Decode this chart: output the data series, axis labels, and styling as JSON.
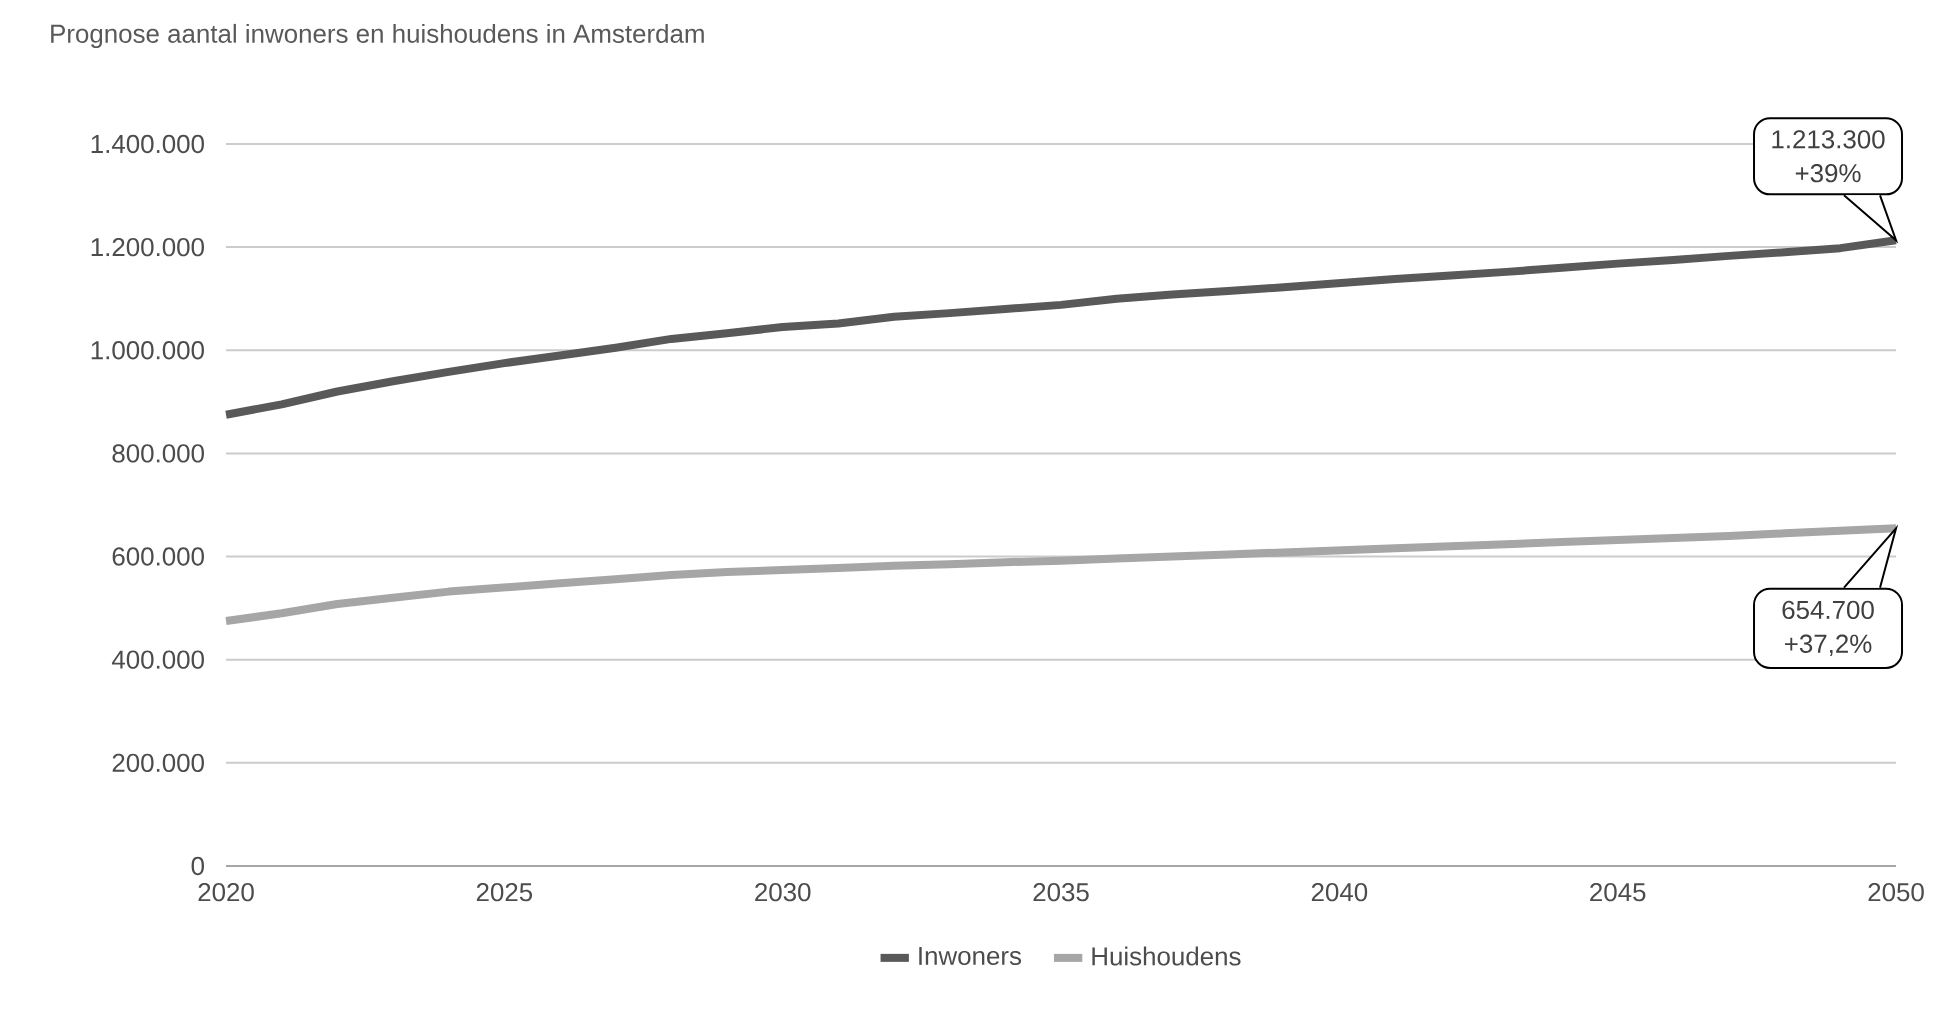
{
  "chart_data": {
    "type": "line",
    "title": "Prognose aantal inwoners en huishoudens in Amsterdam",
    "x": [
      2020,
      2021,
      2022,
      2023,
      2024,
      2025,
      2026,
      2027,
      2028,
      2029,
      2030,
      2031,
      2032,
      2033,
      2034,
      2035,
      2036,
      2037,
      2038,
      2039,
      2040,
      2041,
      2042,
      2043,
      2044,
      2045,
      2046,
      2047,
      2048,
      2049,
      2050
    ],
    "series": [
      {
        "name": "Inwoners",
        "color": "#595959",
        "values": [
          875000,
          895000,
          920000,
          940000,
          958000,
          975000,
          990000,
          1005000,
          1022000,
          1033000,
          1045000,
          1052000,
          1065000,
          1072000,
          1080000,
          1088000,
          1100000,
          1108000,
          1115000,
          1122000,
          1130000,
          1138000,
          1145000,
          1152000,
          1160000,
          1168000,
          1175000,
          1183000,
          1190000,
          1198000,
          1213300
        ]
      },
      {
        "name": "Huishoudens",
        "color": "#a6a6a6",
        "values": [
          475000,
          490000,
          508000,
          520000,
          532000,
          540000,
          548000,
          556000,
          564000,
          570000,
          574000,
          578000,
          582000,
          585000,
          589000,
          592000,
          596000,
          600000,
          604000,
          608000,
          612000,
          616000,
          620000,
          624000,
          628000,
          632000,
          636000,
          640000,
          645000,
          650000,
          654700
        ]
      }
    ],
    "xlim": [
      2020,
      2050
    ],
    "xticks": [
      2020,
      2025,
      2030,
      2035,
      2040,
      2045,
      2050
    ],
    "ylim": [
      0,
      1400000
    ],
    "yticks": [
      0,
      {
        "value": 200000,
        "label": "200.000"
      },
      {
        "value": 400000,
        "label": "400.000"
      },
      {
        "value": 600000,
        "label": "600.000"
      },
      {
        "value": 800000,
        "label": "800.000"
      },
      {
        "value": 1000000,
        "label": "1.000.000"
      },
      {
        "value": 1200000,
        "label": "1.200.000"
      },
      {
        "value": 1400000,
        "label": "1.400.000"
      }
    ],
    "grid": "y",
    "legend": "bottom",
    "marker": "none",
    "line_style": "solid",
    "annotations": [
      {
        "text": "1.213.300 +39%",
        "x": 2050,
        "y": 1213300
      },
      {
        "text": "654.700 +37,2%",
        "x": 2050,
        "y": 654700
      }
    ]
  }
}
